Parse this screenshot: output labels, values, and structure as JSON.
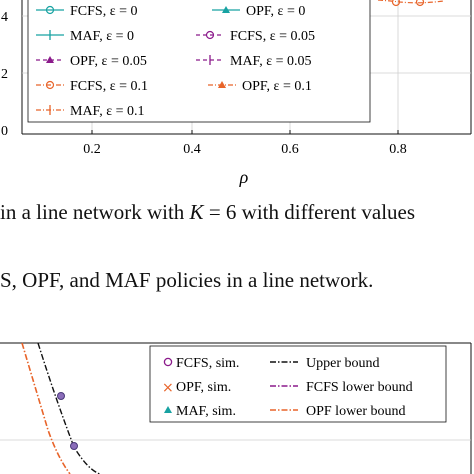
{
  "top_figure": {
    "tick_labels_x": [
      "0.2",
      "0.4",
      "0.6",
      "0.8"
    ],
    "tick_labels_y": [
      "4",
      "2",
      "0"
    ],
    "xlabel": "ρ",
    "legend": [
      {
        "label": "FCFS, ε = 0",
        "marker": "circle",
        "line": "solid",
        "color": "#17a2a2"
      },
      {
        "label": "OPF, ε = 0",
        "marker": "triangle",
        "line": "solid",
        "color": "#17a2a2"
      },
      {
        "label": "MAF, ε = 0",
        "marker": "plus",
        "line": "solid",
        "color": "#17a2a2"
      },
      {
        "label": "FCFS, ε = 0.05",
        "marker": "circle",
        "line": "dashed",
        "color": "#8b1a8b"
      },
      {
        "label": "OPF, ε = 0.05",
        "marker": "triangle",
        "line": "dashed",
        "color": "#8b1a8b"
      },
      {
        "label": "MAF, ε = 0.05",
        "marker": "plus",
        "line": "dashed",
        "color": "#8b1a8b"
      },
      {
        "label": "FCFS, ε = 0.1",
        "marker": "circle",
        "line": "dashdot",
        "color": "#e8642a"
      },
      {
        "label": "OPF, ε = 0.1",
        "marker": "triangle",
        "line": "dashdot",
        "color": "#e8642a"
      },
      {
        "label": "MAF, ε = 0.1",
        "marker": "plus",
        "line": "dashdot",
        "color": "#e8642a"
      }
    ]
  },
  "caption_1": {
    "prefix": "in a line network with ",
    "math_k": "K",
    "suffix": " = 6 with different values"
  },
  "caption_2": {
    "text": "S, OPF, and MAF policies in a line network."
  },
  "bottom_figure": {
    "legend": [
      {
        "label": "FCFS, sim.",
        "marker": "circle",
        "color": "#8b1a8b"
      },
      {
        "label": "Upper bound",
        "line": "dashdot",
        "color": "#111111"
      },
      {
        "label": "OPF, sim.",
        "marker": "cross",
        "color": "#e8642a"
      },
      {
        "label": "FCFS lower bound",
        "line": "dashdot",
        "color": "#8b1a8b"
      },
      {
        "label": "MAF, sim.",
        "marker": "triangle",
        "color": "#17a2a2"
      },
      {
        "label": "OPF lower bound",
        "line": "dashdot",
        "color": "#e8642a"
      }
    ]
  }
}
